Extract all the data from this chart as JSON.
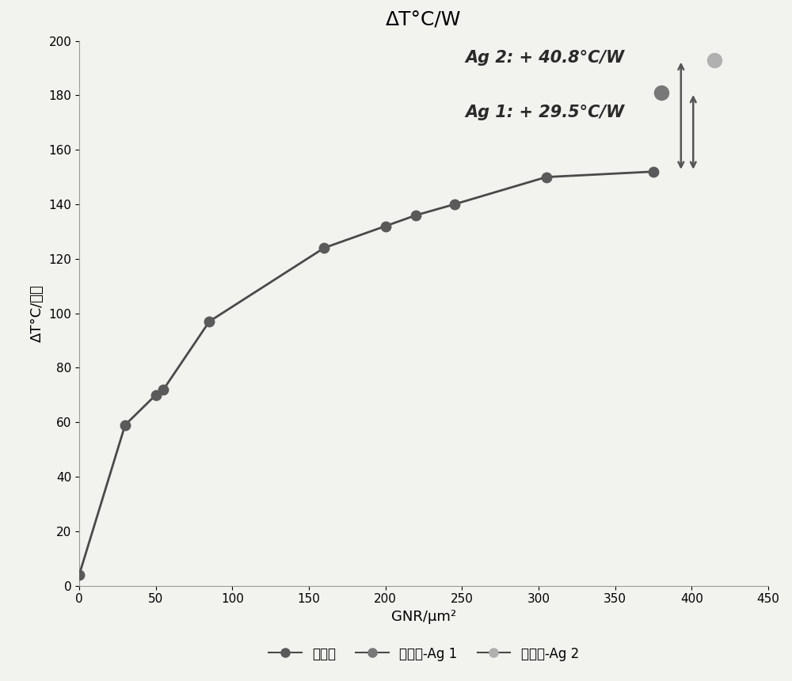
{
  "title": "ΔT°C/W",
  "xlabel": "GNR/μm²",
  "ylabel": "ΔT°C/瓦特",
  "xlim": [
    0,
    450
  ],
  "ylim": [
    0,
    200
  ],
  "xticks": [
    0,
    50,
    100,
    150,
    200,
    250,
    300,
    350,
    400,
    450
  ],
  "yticks": [
    0,
    20,
    40,
    60,
    80,
    100,
    120,
    140,
    160,
    180,
    200
  ],
  "main_x": [
    0,
    30,
    50,
    55,
    85,
    160,
    200,
    220,
    245,
    305,
    375
  ],
  "main_y": [
    4,
    59,
    70,
    72,
    97,
    124,
    132,
    136,
    140,
    150,
    152
  ],
  "ag1_x": [
    380
  ],
  "ag1_y": [
    181
  ],
  "ag2_x": [
    415
  ],
  "ag2_y": [
    193
  ],
  "line_color": "#4a4a4a",
  "marker_color": "#5a5a5a",
  "ag1_marker_color": "#787878",
  "ag2_marker_color": "#b0b0b0",
  "marker_size": 9,
  "ag1_marker_size": 13,
  "ag2_marker_size": 13,
  "annotation_ag2": "Ag 2: + 40.8°C/W",
  "annotation_ag1": "Ag 1: + 29.5°C/W",
  "arrow_color": "#555555",
  "background_color": "#f2f2ee",
  "legend_labels": [
    "网状物",
    "网状物-Ag 1",
    "网状物-Ag 2"
  ],
  "title_fontsize": 18,
  "label_fontsize": 13,
  "tick_fontsize": 11,
  "legend_fontsize": 12,
  "annot_fontsize": 15
}
